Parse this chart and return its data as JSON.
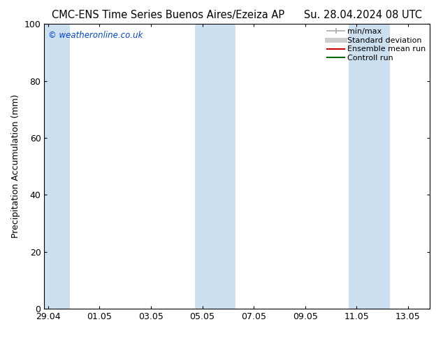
{
  "title_left": "CMC-ENS Time Series Buenos Aires/Ezeiza AP",
  "title_right": "Su. 28.04.2024 08 UTC",
  "ylabel": "Precipitation Accumulation (mm)",
  "watermark": "© weatheronline.co.uk",
  "ylim": [
    0,
    100
  ],
  "yticks": [
    0,
    20,
    40,
    60,
    80,
    100
  ],
  "xtick_labels": [
    "29.04",
    "01.05",
    "03.05",
    "05.05",
    "07.05",
    "09.05",
    "11.05",
    "13.05"
  ],
  "xtick_positions": [
    0,
    2,
    4,
    6,
    8,
    10,
    12,
    14
  ],
  "xlim": [
    -0.15,
    14.85
  ],
  "shaded_bands": [
    {
      "x_start": -0.15,
      "x_end": 0.85
    },
    {
      "x_start": 5.7,
      "x_end": 7.3
    },
    {
      "x_start": 11.7,
      "x_end": 13.3
    }
  ],
  "shade_color": "#cce0f0",
  "background_color": "#ffffff",
  "plot_bg_color": "#ffffff",
  "legend_items": [
    {
      "label": "min/max",
      "color": "#aaaaaa",
      "lw": 1.2
    },
    {
      "label": "Standard deviation",
      "color": "#cccccc",
      "lw": 5
    },
    {
      "label": "Ensemble mean run",
      "color": "#cc0000",
      "lw": 1.5
    },
    {
      "label": "Controll run",
      "color": "#006600",
      "lw": 1.5
    }
  ],
  "watermark_color": "#0044cc",
  "title_fontsize": 10.5,
  "axis_fontsize": 9,
  "tick_fontsize": 9,
  "legend_fontsize": 8
}
